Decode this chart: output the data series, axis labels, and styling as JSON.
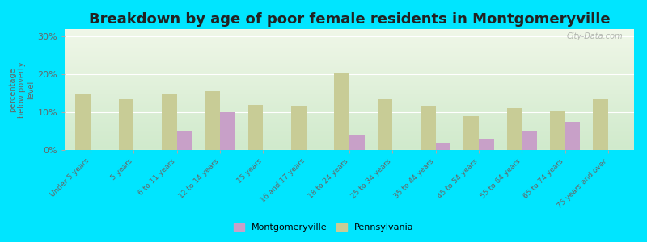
{
  "title": "Breakdown by age of poor female residents in Montgomeryville",
  "ylabel": "percentage\nbelow poverty\nlevel",
  "categories": [
    "Under 5 years",
    "5 years",
    "6 to 11 years",
    "12 to 14 years",
    "15 years",
    "16 and 17 years",
    "18 to 24 years",
    "25 to 34 years",
    "35 to 44 years",
    "45 to 54 years",
    "55 to 64 years",
    "65 to 74 years",
    "75 years and over"
  ],
  "montgomeryville": [
    0,
    0,
    5,
    10,
    0,
    0,
    4,
    0,
    2,
    3,
    5,
    7.5,
    0
  ],
  "pennsylvania": [
    15,
    13.5,
    15,
    15.5,
    12,
    11.5,
    20.5,
    13.5,
    11.5,
    9,
    11,
    10.5,
    13.5
  ],
  "bar_color_montgomeryville": "#c8a0c8",
  "bar_color_pennsylvania": "#c8cc96",
  "plot_bg_top": "#f0f7e8",
  "plot_bg_bottom": "#d0eacc",
  "outer_bg": "#00e5ff",
  "title_fontsize": 13,
  "yticks": [
    0,
    10,
    20,
    30
  ],
  "ytick_labels": [
    "0%",
    "10%",
    "20%",
    "30%"
  ],
  "ylim": [
    0,
    32
  ],
  "bar_width": 0.35,
  "watermark": "City-Data.com"
}
